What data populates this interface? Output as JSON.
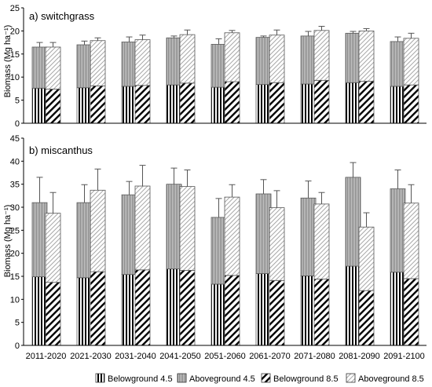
{
  "chart_data": [
    {
      "type": "bar",
      "title": "a) switchgrass",
      "ylabel": "Biomass (Mg ha⁻¹)",
      "ylim": [
        0,
        25
      ],
      "yticks": [
        0,
        5,
        10,
        15,
        20,
        25
      ],
      "stacked": true,
      "grid": false,
      "categories": [
        "2011-2020",
        "2021-2030",
        "2031-2040",
        "2041-2050",
        "2051-2060",
        "2061-2070",
        "2071-2080",
        "2081-2090",
        "2091-2100"
      ],
      "scenarios": [
        {
          "name": "4.5",
          "belowground": [
            7.6,
            7.7,
            8.0,
            8.3,
            7.8,
            8.4,
            8.5,
            8.8,
            8.0
          ],
          "total": [
            16.5,
            17.0,
            17.6,
            18.5,
            17.1,
            18.6,
            18.9,
            19.5,
            17.7
          ],
          "error_top": [
            17.5,
            17.8,
            18.7,
            18.9,
            18.3,
            18.9,
            19.9,
            19.9,
            18.7
          ]
        },
        {
          "name": "8.5",
          "belowground": [
            7.4,
            8.1,
            8.2,
            8.7,
            9.0,
            8.8,
            9.3,
            9.1,
            8.3
          ],
          "total": [
            16.5,
            17.9,
            18.1,
            19.2,
            19.6,
            19.1,
            20.1,
            20.0,
            18.4
          ],
          "error_top": [
            17.5,
            18.5,
            19.1,
            20.2,
            20.1,
            20.2,
            21.0,
            20.5,
            19.5
          ]
        }
      ]
    },
    {
      "type": "bar",
      "title": "b) miscanthus",
      "ylabel": "Biomass (Mg ha⁻¹)",
      "ylim": [
        0,
        45
      ],
      "yticks": [
        0,
        5,
        10,
        15,
        20,
        25,
        30,
        35,
        40,
        45
      ],
      "stacked": true,
      "grid": false,
      "categories": [
        "2011-2020",
        "2021-2030",
        "2031-2040",
        "2041-2050",
        "2051-2060",
        "2061-2070",
        "2071-2080",
        "2081-2090",
        "2091-2100"
      ],
      "scenarios": [
        {
          "name": "4.5",
          "belowground": [
            14.9,
            14.7,
            15.4,
            16.6,
            13.3,
            15.6,
            15.1,
            17.2,
            15.9
          ],
          "total": [
            31.0,
            31.0,
            32.7,
            35.0,
            27.8,
            32.9,
            32.0,
            36.5,
            34.0
          ],
          "error_top": [
            36.5,
            34.9,
            35.6,
            38.5,
            31.9,
            36.0,
            35.7,
            39.7,
            38.1
          ]
        },
        {
          "name": "8.5",
          "belowground": [
            13.7,
            16.0,
            16.4,
            16.3,
            15.2,
            14.1,
            14.4,
            11.9,
            14.5
          ],
          "total": [
            28.7,
            33.7,
            34.6,
            34.5,
            32.2,
            29.9,
            30.7,
            25.7,
            30.9
          ],
          "error_top": [
            33.2,
            38.3,
            39.1,
            38.1,
            34.9,
            33.6,
            33.2,
            28.8,
            34.9
          ]
        }
      ]
    }
  ],
  "legend": {
    "placement": "bottom",
    "items": [
      {
        "label": "Belowground 4.5",
        "pattern": "vertical-lines"
      },
      {
        "label": "Aboveground 4.5",
        "pattern": "dense-vertical-gray"
      },
      {
        "label": "Belowground 8.5",
        "pattern": "thick-diagonal"
      },
      {
        "label": "Aboveground 8.5",
        "pattern": "light-diagonal"
      }
    ]
  },
  "colors": {
    "axis": "#000000",
    "bar_outline": "#595959",
    "hatch_dark": "#000000",
    "hatch_gray": "#8c8c8c",
    "hatch_light": "#b3b3b3"
  }
}
